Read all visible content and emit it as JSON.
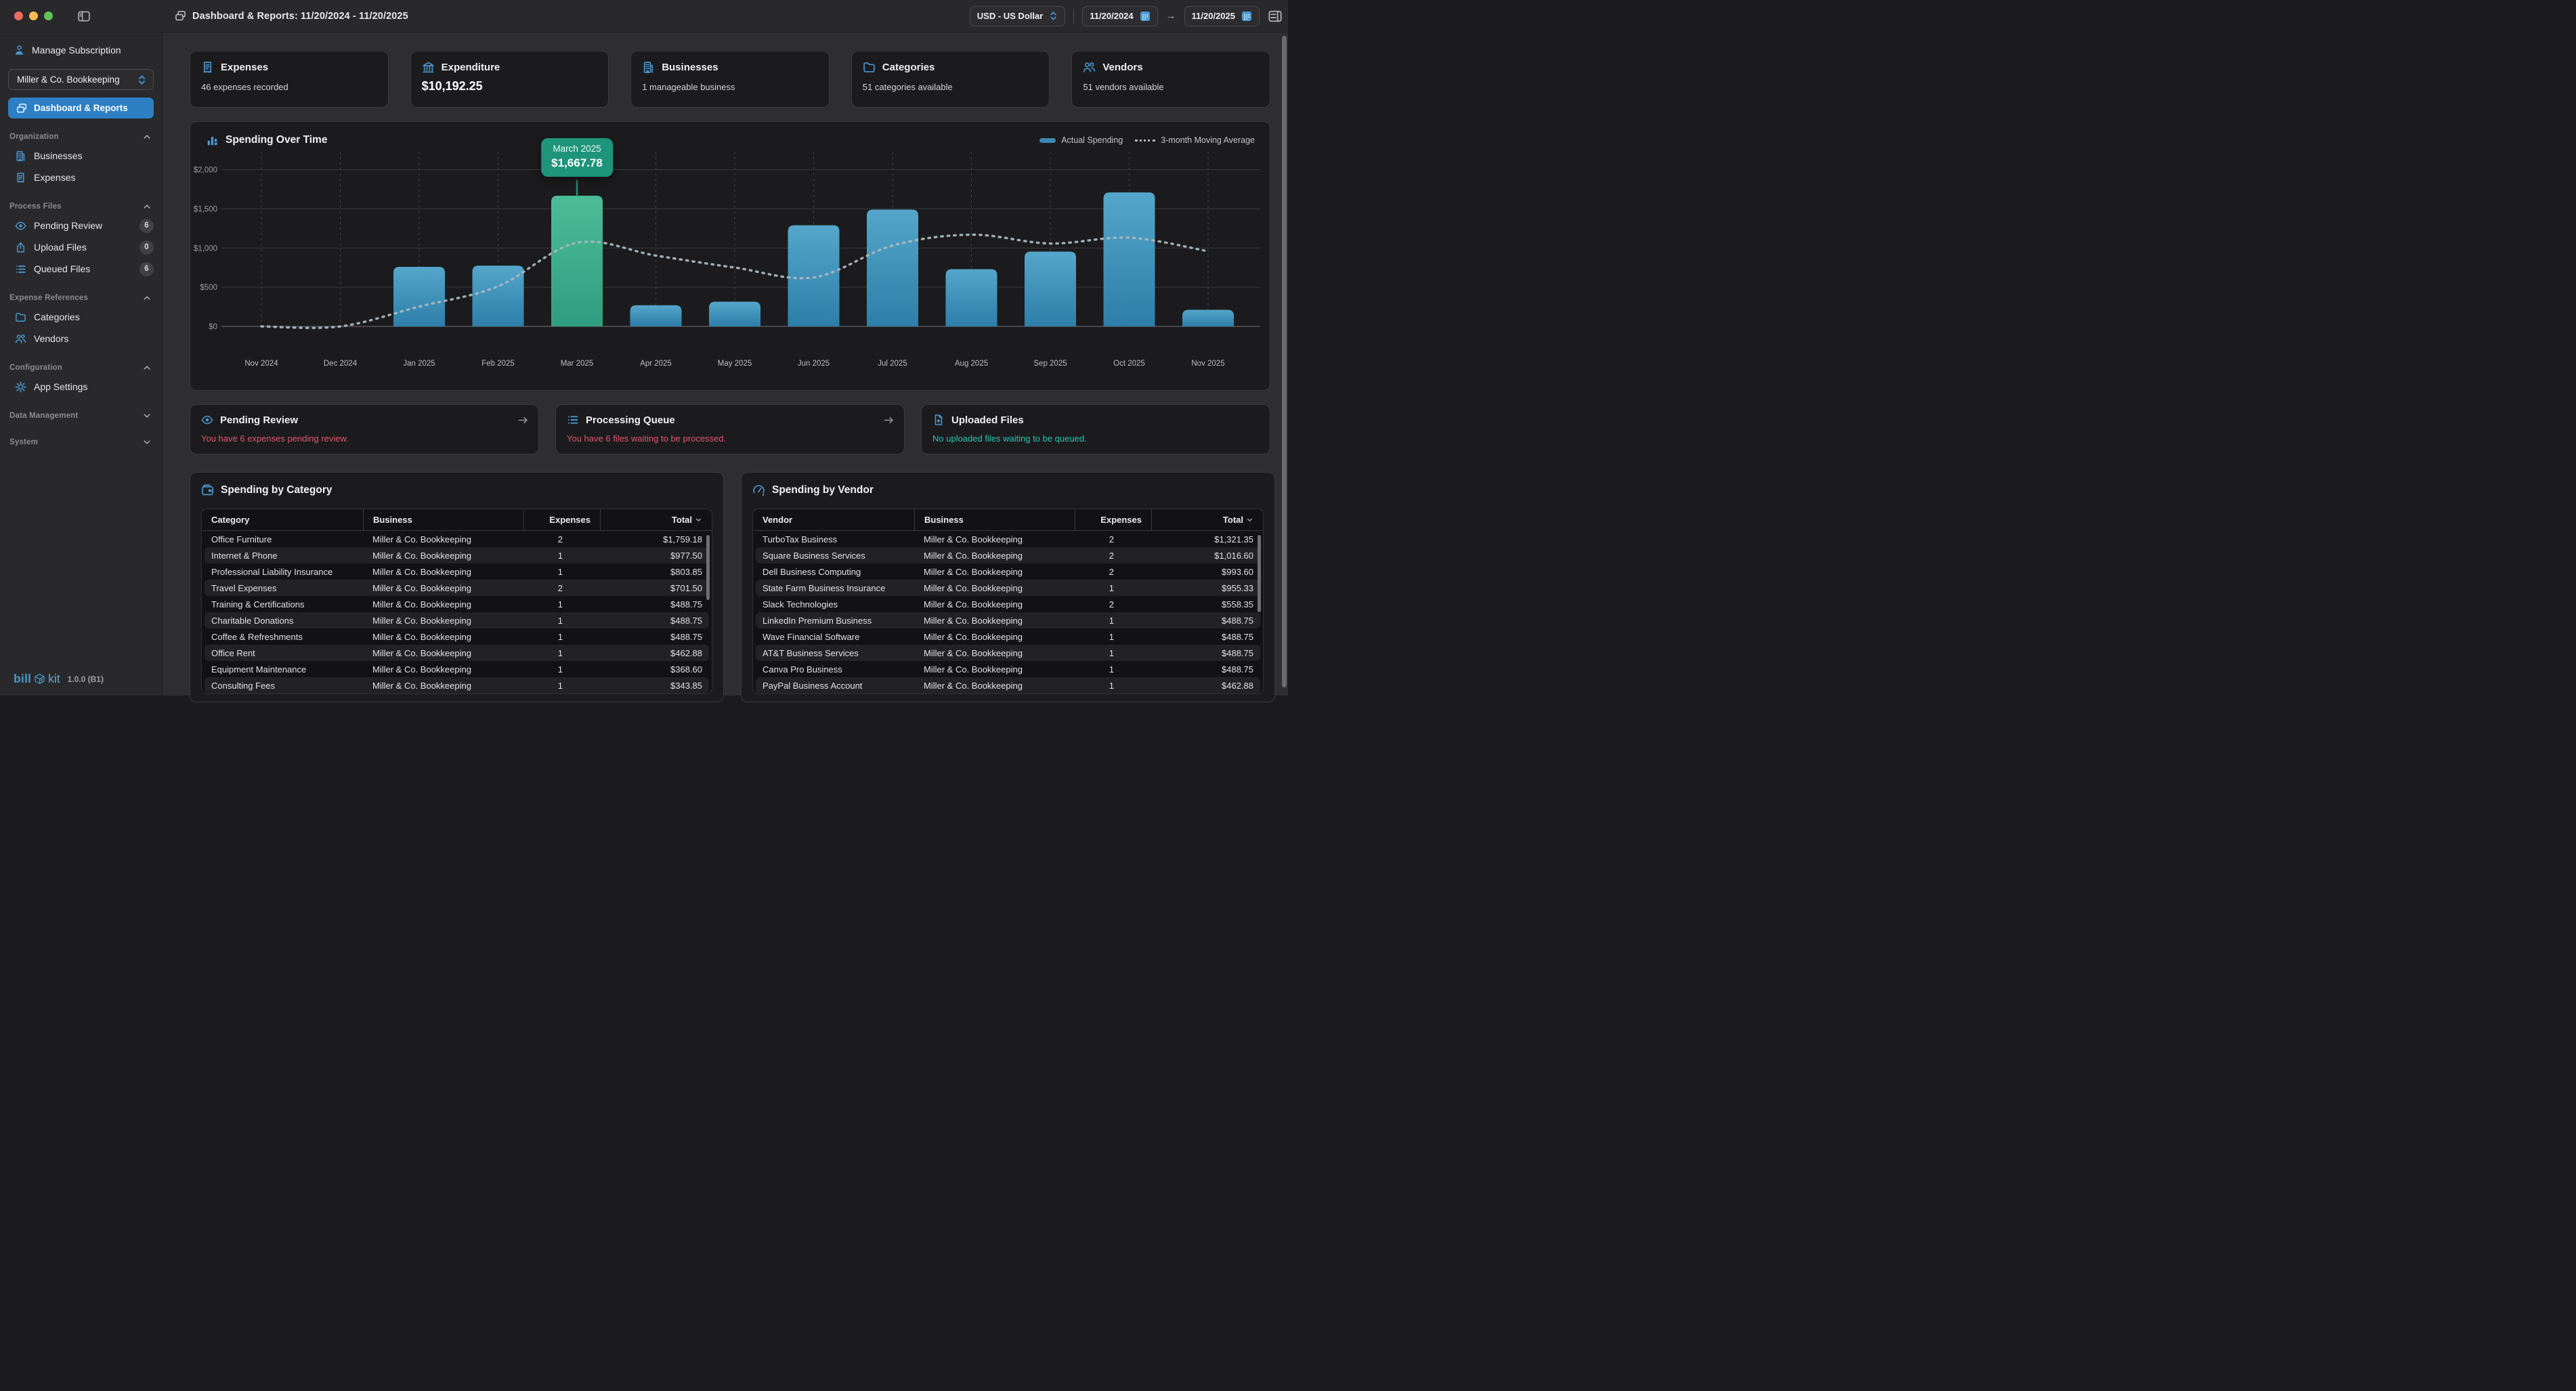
{
  "titlebar": {
    "title": "Dashboard & Reports: 11/20/2024 - 11/20/2025",
    "currency_selector": "USD - US Dollar",
    "date_from": "11/20/2024",
    "date_to": "11/20/2025"
  },
  "sidebar": {
    "manage_subscription": "Manage Subscription",
    "business_selector": "Miller & Co. Bookkeeping",
    "dashboard_item": "Dashboard & Reports",
    "sections": [
      {
        "label": "Organization",
        "state": "expanded",
        "items": [
          {
            "icon": "building",
            "label": "Businesses"
          },
          {
            "icon": "receipt",
            "label": "Expenses"
          }
        ]
      },
      {
        "label": "Process Files",
        "state": "expanded",
        "items": [
          {
            "icon": "eye",
            "label": "Pending Review",
            "badge": "6"
          },
          {
            "icon": "upload",
            "label": "Upload Files",
            "badge": "0"
          },
          {
            "icon": "list",
            "label": "Queued Files",
            "badge": "6"
          }
        ]
      },
      {
        "label": "Expense References",
        "state": "expanded",
        "items": [
          {
            "icon": "folder",
            "label": "Categories"
          },
          {
            "icon": "people",
            "label": "Vendors"
          }
        ]
      },
      {
        "label": "Configuration",
        "state": "expanded",
        "items": [
          {
            "icon": "gear",
            "label": "App Settings"
          }
        ]
      },
      {
        "label": "Data Management",
        "state": "collapsed",
        "items": []
      },
      {
        "label": "System",
        "state": "collapsed",
        "items": []
      }
    ],
    "footer": {
      "logo_bill": "bill",
      "logo_kit": "kit",
      "version": "1.0.0 (B1)"
    }
  },
  "stats": [
    {
      "icon": "receipt",
      "label": "Expenses",
      "value": "46 expenses recorded",
      "emphasis": false
    },
    {
      "icon": "bank",
      "label": "Expenditure",
      "value": "$10,192.25",
      "emphasis": true
    },
    {
      "icon": "building",
      "label": "Businesses",
      "value": "1 manageable business",
      "emphasis": false
    },
    {
      "icon": "folder",
      "label": "Categories",
      "value": "51 categories available",
      "emphasis": false
    },
    {
      "icon": "people",
      "label": "Vendors",
      "value": "51 vendors available",
      "emphasis": false
    }
  ],
  "chart_data": {
    "type": "bar",
    "title": "Spending Over Time",
    "categories": [
      "Nov 2024",
      "Dec 2024",
      "Jan 2025",
      "Feb 2025",
      "Mar 2025",
      "Apr 2025",
      "May 2025",
      "Jun 2025",
      "Jul 2025",
      "Aug 2025",
      "Sep 2025",
      "Oct 2025",
      "Nov 2025"
    ],
    "series": [
      {
        "name": "Actual Spending",
        "type": "bar",
        "values": [
          0,
          0,
          760,
          775,
          1667.78,
          270,
          315,
          1290,
          1490,
          730,
          955,
          1710,
          212
        ]
      },
      {
        "name": "3-month Moving Average",
        "type": "line",
        "values": [
          0,
          0,
          253,
          512,
          1068,
          904,
          751,
          625,
          1032,
          1170,
          1058,
          1132,
          959
        ]
      }
    ],
    "highlight": {
      "index": 4,
      "label": "March 2025",
      "value": "$1,667.78"
    },
    "ylim": [
      0,
      2000
    ],
    "y_ticks": [
      "$0",
      "$500",
      "$1,000",
      "$1,500",
      "$2,000"
    ],
    "legend": [
      {
        "label": "Actual Spending",
        "style": "solid",
        "color": "#3d87b0"
      },
      {
        "label": "3-month Moving Average",
        "style": "dotted",
        "color": "#a9b6be"
      }
    ],
    "colors": {
      "bar_top": "#55a6ca",
      "bar_bottom": "#2d7ea9",
      "highlight_top": "#4cbd96",
      "highlight_bottom": "#2f9d80",
      "moving_avg": "#a9b6be",
      "tooltip_bg": "#1e957b"
    }
  },
  "action_cards": [
    {
      "icon": "eye",
      "title": "Pending Review",
      "message": "You have 6 expenses pending review.",
      "message_color": "#e25672",
      "has_arrow": true
    },
    {
      "icon": "list",
      "title": "Processing Queue",
      "message": "You have 6 files waiting to be processed.",
      "message_color": "#e25672",
      "has_arrow": true
    },
    {
      "icon": "fileup",
      "title": "Uploaded Files",
      "message": "No uploaded files waiting to be queued.",
      "message_color": "#2fc3ae",
      "has_arrow": false
    }
  ],
  "tables": [
    {
      "icon": "wallet",
      "title": "Spending by Category",
      "columns": [
        "Category",
        "Business",
        "Expenses",
        "Total"
      ],
      "sort_column": "Total",
      "rows": [
        [
          "Office Furniture",
          "Miller & Co. Bookkeeping",
          "2",
          "$1,759.18"
        ],
        [
          "Internet & Phone",
          "Miller & Co. Bookkeeping",
          "1",
          "$977.50"
        ],
        [
          "Professional Liability Insurance",
          "Miller & Co. Bookkeeping",
          "1",
          "$803.85"
        ],
        [
          "Travel Expenses",
          "Miller & Co. Bookkeeping",
          "2",
          "$701.50"
        ],
        [
          "Training & Certifications",
          "Miller & Co. Bookkeeping",
          "1",
          "$488.75"
        ],
        [
          "Charitable Donations",
          "Miller & Co. Bookkeeping",
          "1",
          "$488.75"
        ],
        [
          "Coffee & Refreshments",
          "Miller & Co. Bookkeeping",
          "1",
          "$488.75"
        ],
        [
          "Office Rent",
          "Miller & Co. Bookkeeping",
          "1",
          "$462.88"
        ],
        [
          "Equipment Maintenance",
          "Miller & Co. Bookkeeping",
          "1",
          "$368.60"
        ],
        [
          "Consulting Fees",
          "Miller & Co. Bookkeeping",
          "1",
          "$343.85"
        ]
      ]
    },
    {
      "icon": "gauge",
      "title": "Spending by Vendor",
      "columns": [
        "Vendor",
        "Business",
        "Expenses",
        "Total"
      ],
      "sort_column": "Total",
      "rows": [
        [
          "TurboTax Business",
          "Miller & Co. Bookkeeping",
          "2",
          "$1,321.35"
        ],
        [
          "Square Business Services",
          "Miller & Co. Bookkeeping",
          "2",
          "$1,016.60"
        ],
        [
          "Dell Business Computing",
          "Miller & Co. Bookkeeping",
          "2",
          "$993.60"
        ],
        [
          "State Farm Business Insurance",
          "Miller & Co. Bookkeeping",
          "1",
          "$955.33"
        ],
        [
          "Slack Technologies",
          "Miller & Co. Bookkeeping",
          "2",
          "$558.35"
        ],
        [
          "LinkedIn Premium Business",
          "Miller & Co. Bookkeeping",
          "1",
          "$488.75"
        ],
        [
          "Wave Financial Software",
          "Miller & Co. Bookkeeping",
          "1",
          "$488.75"
        ],
        [
          "AT&T Business Services",
          "Miller & Co. Bookkeeping",
          "1",
          "$488.75"
        ],
        [
          "Canva Pro Business",
          "Miller & Co. Bookkeeping",
          "1",
          "$488.75"
        ],
        [
          "PayPal Business Account",
          "Miller & Co. Bookkeeping",
          "1",
          "$462.88"
        ]
      ]
    }
  ]
}
